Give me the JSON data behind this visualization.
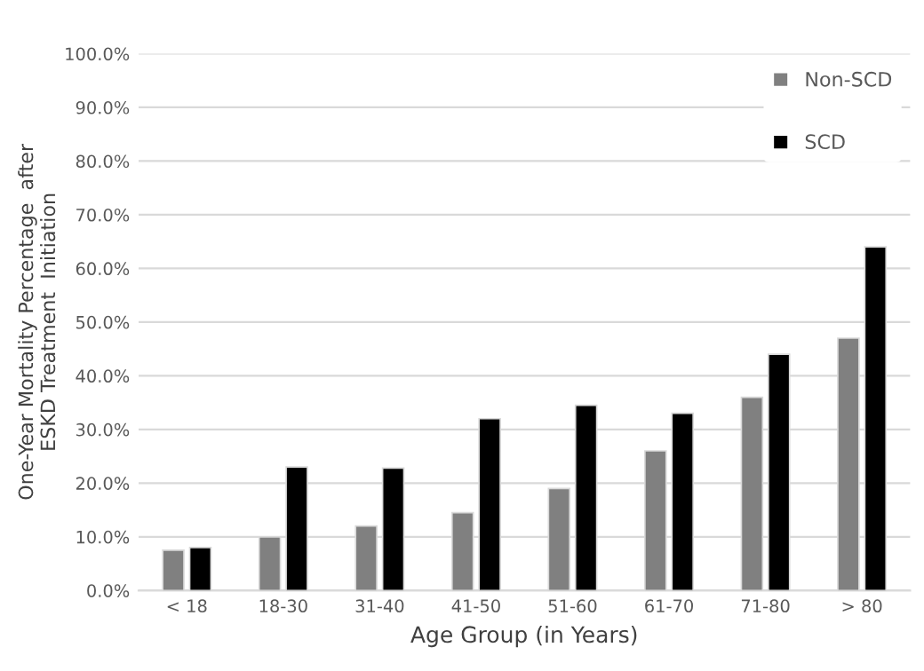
{
  "chart_data": {
    "type": "bar",
    "xlabel": "Age Group (in Years)",
    "ylabel": "One-Year Mortality Percentage  after\nESKD Treatment  Initiation",
    "categories": [
      "< 18",
      "18-30",
      "31-40",
      "41-50",
      "51-60",
      "61-70",
      "71-80",
      "> 80"
    ],
    "series": [
      {
        "name": "Non-SCD",
        "color": "#808080",
        "values": [
          7.5,
          10,
          12,
          14.5,
          19,
          26,
          36,
          47
        ]
      },
      {
        "name": "SCD",
        "color": "#000000",
        "values": [
          8,
          23,
          22.8,
          32,
          34.5,
          33,
          44,
          64
        ]
      }
    ],
    "ylim": [
      0,
      100
    ],
    "yticks": [
      {
        "value": 0,
        "label": "0.0%"
      },
      {
        "value": 10,
        "label": "10.0%"
      },
      {
        "value": 20,
        "label": "20.0%"
      },
      {
        "value": 30,
        "label": "30.0%"
      },
      {
        "value": 40,
        "label": "40.0%"
      },
      {
        "value": 50,
        "label": "50.0%"
      },
      {
        "value": 60,
        "label": "60.0%"
      },
      {
        "value": 70,
        "label": "70.0%"
      },
      {
        "value": 80,
        "label": "80.0%"
      },
      {
        "value": 90,
        "label": "90.0%"
      },
      {
        "value": 100,
        "label": "100.0%"
      }
    ],
    "grid": "y",
    "legend": "top right"
  }
}
